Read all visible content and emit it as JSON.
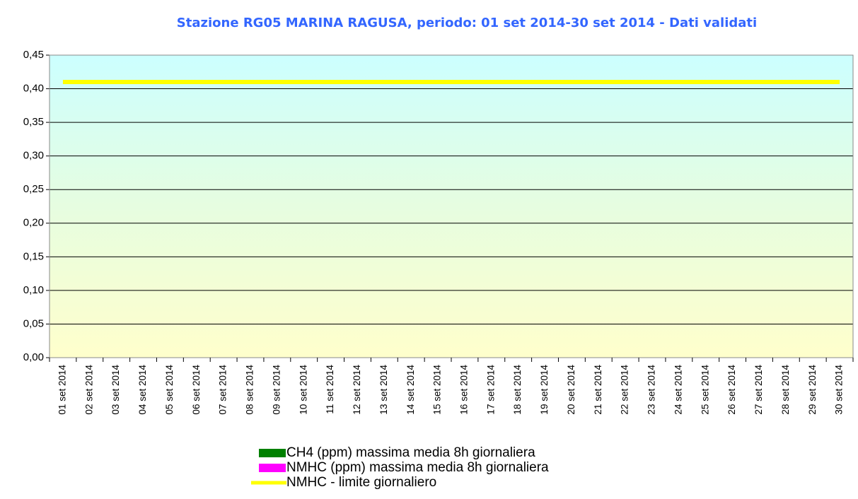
{
  "chart_data": {
    "type": "bar",
    "title": "Stazione RG05 MARINA RAGUSA, periodo: 01 set 2014-30 set 2014 - Dati validati",
    "categories": [
      "01 set 2014",
      "02 set 2014",
      "03 set 2014",
      "04 set 2014",
      "05 set 2014",
      "06 set 2014",
      "07 set 2014",
      "08 set 2014",
      "09 set 2014",
      "10 set 2014",
      "11 set 2014",
      "12 set 2014",
      "13 set 2014",
      "14 set 2014",
      "15 set 2014",
      "16 set 2014",
      "17 set 2014",
      "18 set 2014",
      "19 set 2014",
      "20 set 2014",
      "21 set 2014",
      "22 set 2014",
      "23 set 2014",
      "24 set 2014",
      "25 set 2014",
      "26 set 2014",
      "27 set 2014",
      "28 set 2014",
      "29 set 2014",
      "30 set 2014"
    ],
    "series": [
      {
        "name": "CH4 (ppm) massima media 8h giornaliera",
        "color": "#008000",
        "type": "bar",
        "values": [
          null,
          null,
          null,
          null,
          null,
          null,
          null,
          null,
          null,
          null,
          null,
          null,
          null,
          null,
          null,
          null,
          null,
          null,
          null,
          null,
          null,
          null,
          null,
          null,
          null,
          null,
          null,
          null,
          null,
          null
        ]
      },
      {
        "name": "NMHC (ppm) massima media 8h giornaliera",
        "color": "#ff00ff",
        "type": "bar",
        "values": [
          null,
          null,
          null,
          null,
          null,
          null,
          null,
          null,
          null,
          null,
          null,
          null,
          null,
          null,
          null,
          null,
          null,
          null,
          null,
          null,
          null,
          null,
          null,
          null,
          null,
          null,
          null,
          null,
          null,
          null
        ]
      },
      {
        "name": "NMHC - limite giornaliero",
        "color": "#ffff00",
        "type": "line",
        "values": [
          0.41,
          0.41,
          0.41,
          0.41,
          0.41,
          0.41,
          0.41,
          0.41,
          0.41,
          0.41,
          0.41,
          0.41,
          0.41,
          0.41,
          0.41,
          0.41,
          0.41,
          0.41,
          0.41,
          0.41,
          0.41,
          0.41,
          0.41,
          0.41,
          0.41,
          0.41,
          0.41,
          0.41,
          0.41,
          0.41
        ]
      }
    ],
    "ylim": [
      0,
      0.45
    ],
    "yticks": [
      {
        "value": 0,
        "label": "0,00"
      },
      {
        "value": 0.05,
        "label": "0,05"
      },
      {
        "value": 0.1,
        "label": "0,10"
      },
      {
        "value": 0.15,
        "label": "0,15"
      },
      {
        "value": 0.2,
        "label": "0,20"
      },
      {
        "value": 0.25,
        "label": "0,25"
      },
      {
        "value": 0.3,
        "label": "0,30"
      },
      {
        "value": 0.35,
        "label": "0,35"
      },
      {
        "value": 0.4,
        "label": "0,40"
      },
      {
        "value": 0.45,
        "label": "0,45"
      }
    ],
    "grid": true
  }
}
